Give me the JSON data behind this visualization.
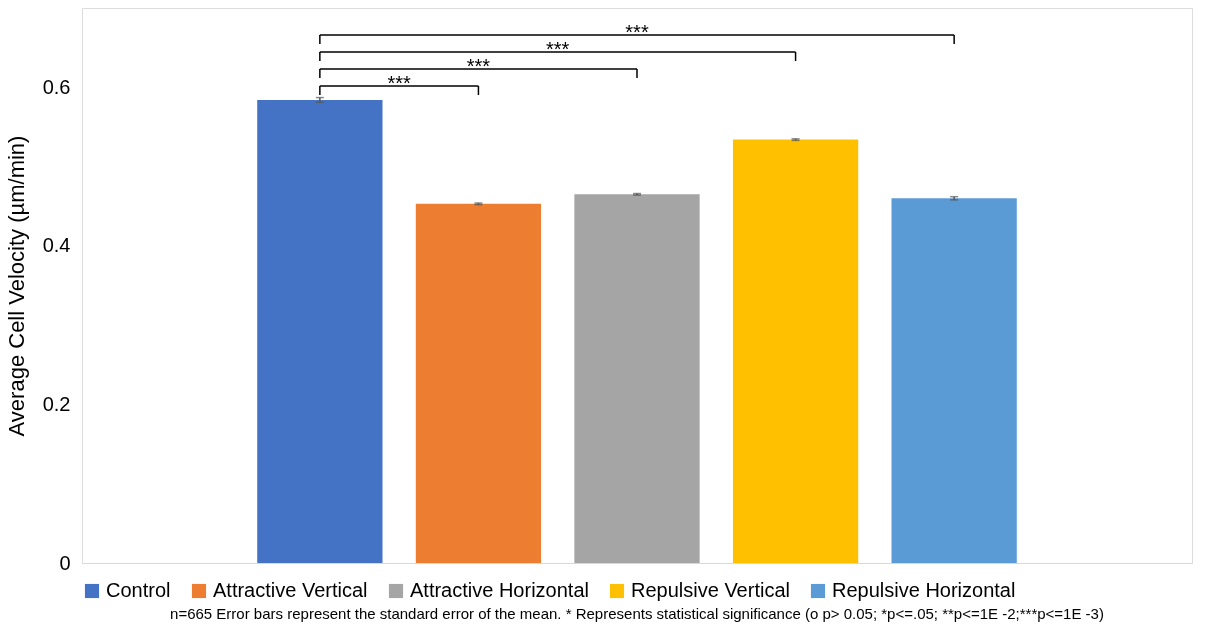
{
  "chart_data": {
    "type": "bar",
    "ylabel": "Average Cell Velocity (µm/min)",
    "stacked": true,
    "categories": [
      null,
      null,
      null,
      null,
      null,
      null,
      null
    ],
    "series": [
      {
        "name": "Control",
        "color": "#4472c4",
        "values": [
          null,
          0.584,
          null,
          null,
          null,
          null,
          null
        ],
        "errors": [
          null,
          0.003,
          null,
          null,
          null,
          null,
          null
        ]
      },
      {
        "name": "Attractive Vertical",
        "color": "#ed7d31",
        "values": [
          null,
          null,
          0.453,
          null,
          null,
          null,
          null
        ],
        "errors": [
          null,
          null,
          0.001,
          null,
          null,
          null,
          null
        ]
      },
      {
        "name": "Attractive Horizontal",
        "color": "#a5a5a5",
        "values": [
          null,
          null,
          null,
          0.465,
          null,
          null,
          null
        ],
        "errors": [
          null,
          null,
          null,
          0.001,
          null,
          null,
          null
        ]
      },
      {
        "name": "Repulsive Vertical",
        "color": "#ffc000",
        "values": [
          null,
          null,
          null,
          null,
          0.534,
          null,
          null
        ],
        "errors": [
          null,
          null,
          null,
          null,
          0.001,
          null,
          null
        ]
      },
      {
        "name": "Repulsive Horizontal",
        "color": "#5b9bd5",
        "values": [
          null,
          null,
          null,
          null,
          null,
          0.46,
          null
        ],
        "errors": [
          null,
          null,
          null,
          null,
          null,
          0.002,
          null
        ]
      }
    ],
    "ylim": [
      0,
      0.7
    ],
    "yticks": [
      0,
      0.2,
      0.4,
      0.6
    ],
    "grid": false,
    "legend": "bottom",
    "tick_labels": "y",
    "annotations": [
      "***",
      "***",
      "***",
      "***",
      "n=665 Error bars represent the standard error of the mean. * Represents statistical significance (o p> 0.05; *p<=.05; **p<=1E -2;***p<=1E -3)"
    ]
  }
}
